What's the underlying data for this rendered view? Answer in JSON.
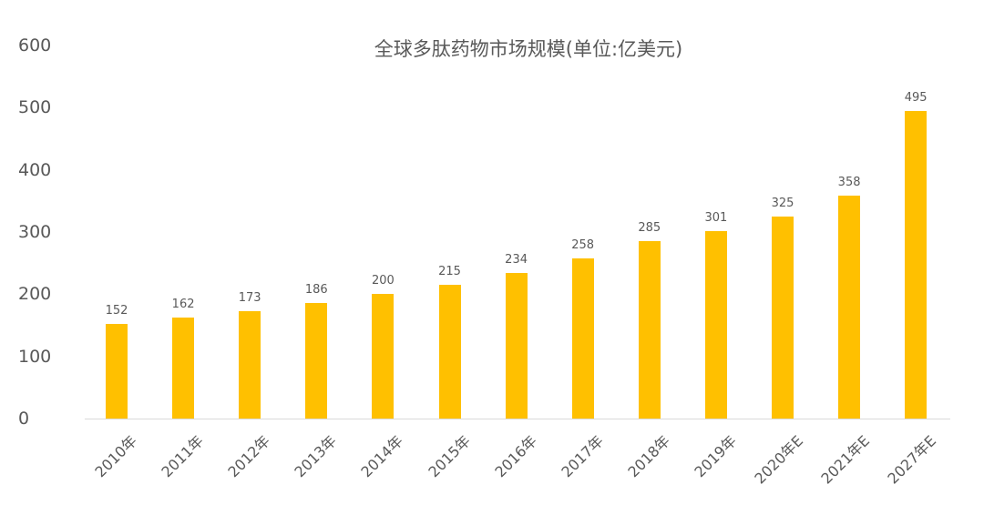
{
  "chart_data": {
    "type": "bar",
    "title": "全球多肽药物市场规模(单位:亿美元)",
    "xlabel": "",
    "ylabel": "",
    "ylim": [
      0,
      600
    ],
    "yticks": [
      "0",
      "100",
      "200",
      "300",
      "400",
      "500",
      "600"
    ],
    "grid": false,
    "legend": null,
    "bar_color": "#ffc000",
    "categories": [
      "2010年",
      "2011年",
      "2012年",
      "2013年",
      "2014年",
      "2015年",
      "2016年",
      "2017年",
      "2018年",
      "2019年",
      "2020年E",
      "2021年E",
      "2027年E"
    ],
    "values": [
      152,
      162,
      173,
      186,
      200,
      215,
      234,
      258,
      285,
      301,
      325,
      358,
      495
    ],
    "data_labels": [
      "152",
      "162",
      "173",
      "186",
      "200",
      "215",
      "234",
      "258",
      "285",
      "301",
      "325",
      "358",
      "495"
    ]
  }
}
